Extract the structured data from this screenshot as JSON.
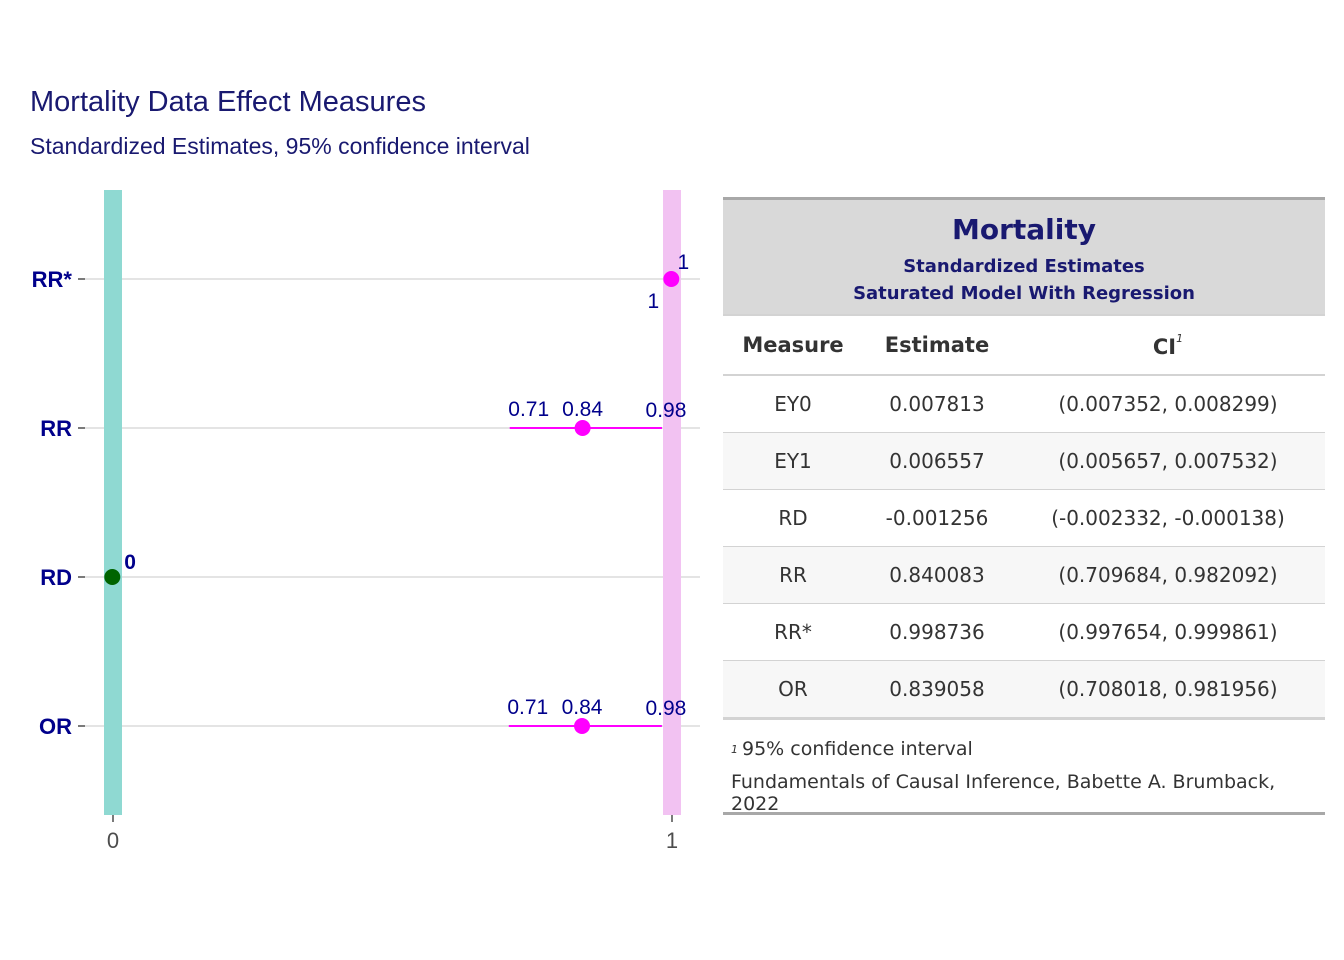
{
  "header": {
    "title": "Mortality Data Effect Measures",
    "subtitle": "Standardized Estimates, 95% confidence interval"
  },
  "colors": {
    "title": "#191970",
    "axis_label": "#00008B",
    "band_null_diff": "#8FD9D2",
    "band_null_ratio": "#F2C2F2",
    "point_ratio": "#FF00FF",
    "point_diff": "#006400"
  },
  "chart_data": {
    "type": "scatter",
    "title": "Mortality Data Effect Measures",
    "subtitle": "Standardized Estimates, 95% confidence interval",
    "xlabel": "",
    "ylabel": "",
    "x_ticks": [
      "0",
      "1"
    ],
    "xlim": [
      0,
      1
    ],
    "categories": [
      "OR",
      "RD",
      "RR",
      "RR*"
    ],
    "reference_bands": [
      0,
      1
    ],
    "grid": "horizontal",
    "points": [
      {
        "measure": "RR*",
        "estimate": 0.998736,
        "lower": 0.997654,
        "upper": 0.999861,
        "label_est": "1",
        "label_lower": "1",
        "label_upper": "",
        "color": "#FF00FF"
      },
      {
        "measure": "RR",
        "estimate": 0.840083,
        "lower": 0.709684,
        "upper": 0.982092,
        "label_est": "0.84",
        "label_lower": "0.71",
        "label_upper": "0.98",
        "color": "#FF00FF"
      },
      {
        "measure": "RD",
        "estimate": -0.001256,
        "lower": -0.002332,
        "upper": -0.000138,
        "label_est": "0",
        "label_lower": "",
        "label_upper": "",
        "color": "#006400"
      },
      {
        "measure": "OR",
        "estimate": 0.839058,
        "lower": 0.708018,
        "upper": 0.981956,
        "label_est": "0.84",
        "label_lower": "0.71",
        "label_upper": "0.98",
        "color": "#FF00FF"
      }
    ]
  },
  "table": {
    "title": "Mortality",
    "subtitle_line1": "Standardized Estimates",
    "subtitle_line2": "Saturated Model With Regression",
    "columns": {
      "measure": "Measure",
      "estimate": "Estimate",
      "ci": "CI",
      "ci_note": "1"
    },
    "rows": [
      {
        "measure": "EY0",
        "estimate": "0.007813",
        "ci": "(0.007352, 0.008299)"
      },
      {
        "measure": "EY1",
        "estimate": "0.006557",
        "ci": "(0.005657, 0.007532)"
      },
      {
        "measure": "RD",
        "estimate": "-0.001256",
        "ci": "(-0.002332, -0.000138)"
      },
      {
        "measure": "RR",
        "estimate": "0.840083",
        "ci": "(0.709684, 0.982092)"
      },
      {
        "measure": "RR*",
        "estimate": "0.998736",
        "ci": "(0.997654, 0.999861)"
      },
      {
        "measure": "OR",
        "estimate": "0.839058",
        "ci": "(0.708018, 0.981956)"
      }
    ],
    "footnote_mark": "1",
    "footnote": "95% confidence interval",
    "source": "Fundamentals of Causal Inference, Babette A. Brumback, 2022"
  }
}
